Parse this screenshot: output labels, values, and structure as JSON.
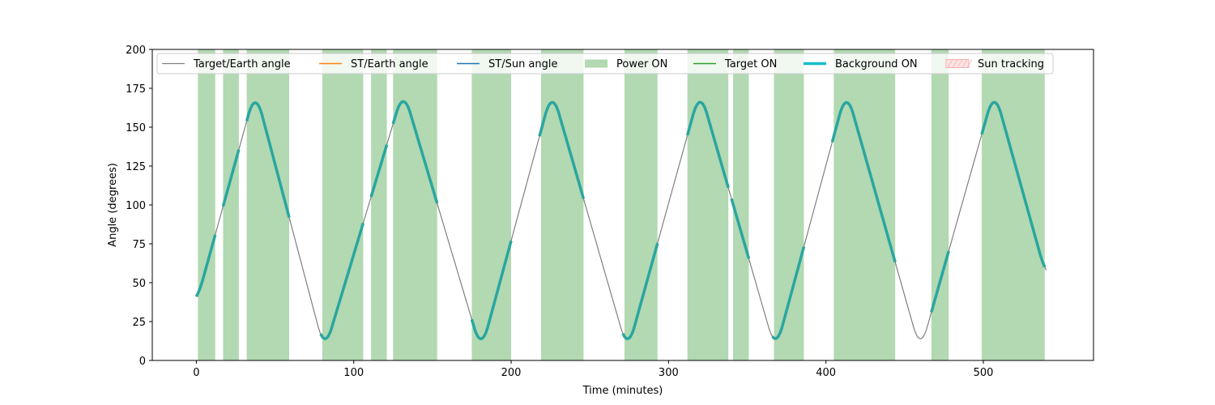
{
  "chart_data": {
    "type": "line",
    "title": "",
    "xlabel": "Time (minutes)",
    "ylabel": "Angle (degrees)",
    "xlim": [
      -28,
      570
    ],
    "ylim": [
      0,
      200
    ],
    "x_ticks": [
      0,
      100,
      200,
      300,
      400,
      500
    ],
    "y_ticks": [
      0,
      25,
      50,
      75,
      100,
      125,
      150,
      175,
      200
    ],
    "grid": false,
    "legend_position": "top",
    "legend": [
      {
        "label": "Target/Earth angle",
        "kind": "line",
        "color": "#808080"
      },
      {
        "label": "ST/Earth angle",
        "kind": "line",
        "color": "#ff7f0e"
      },
      {
        "label": "ST/Sun angle",
        "kind": "line",
        "color": "#1f77b4"
      },
      {
        "label": "Power ON",
        "kind": "patch",
        "color": "#b2d9b2"
      },
      {
        "label": "Target ON",
        "kind": "line",
        "color": "#2ca02c"
      },
      {
        "label": "Background ON",
        "kind": "thickline",
        "color": "#17becf"
      },
      {
        "label": "Sun tracking",
        "kind": "hatch",
        "color": "#f4a0a0"
      }
    ],
    "series": [
      {
        "name": "Target/Earth angle",
        "color": "#808080",
        "x": [
          0,
          37.5,
          81.5,
          131.5,
          181,
          226,
          274,
          320,
          368,
          413,
          460,
          507,
          540
        ],
        "y": [
          37,
          174,
          6,
          174,
          6,
          174,
          6,
          174,
          6,
          174,
          6,
          174,
          54
        ]
      },
      {
        "name": "Background ON",
        "color": "#2aa6a0",
        "segments": [
          [
            0,
            12
          ],
          [
            17,
            27
          ],
          [
            32,
            59
          ],
          [
            79,
            106
          ],
          [
            111,
            121
          ],
          [
            125,
            153
          ],
          [
            175,
            200
          ],
          [
            218,
            246
          ],
          [
            271,
            293
          ],
          [
            312,
            338
          ],
          [
            340,
            351
          ],
          [
            366,
            386
          ],
          [
            404,
            444
          ],
          [
            467,
            478
          ],
          [
            499,
            539
          ]
        ]
      }
    ],
    "power_on_intervals": [
      [
        1,
        12
      ],
      [
        17,
        27
      ],
      [
        32,
        59
      ],
      [
        80,
        106
      ],
      [
        111,
        121
      ],
      [
        125,
        153
      ],
      [
        175,
        200
      ],
      [
        219,
        246
      ],
      [
        272,
        293
      ],
      [
        312,
        338
      ],
      [
        341,
        351
      ],
      [
        367,
        386
      ],
      [
        405,
        444
      ],
      [
        467,
        478
      ],
      [
        499,
        539
      ]
    ],
    "sun_tracking_intervals": []
  }
}
